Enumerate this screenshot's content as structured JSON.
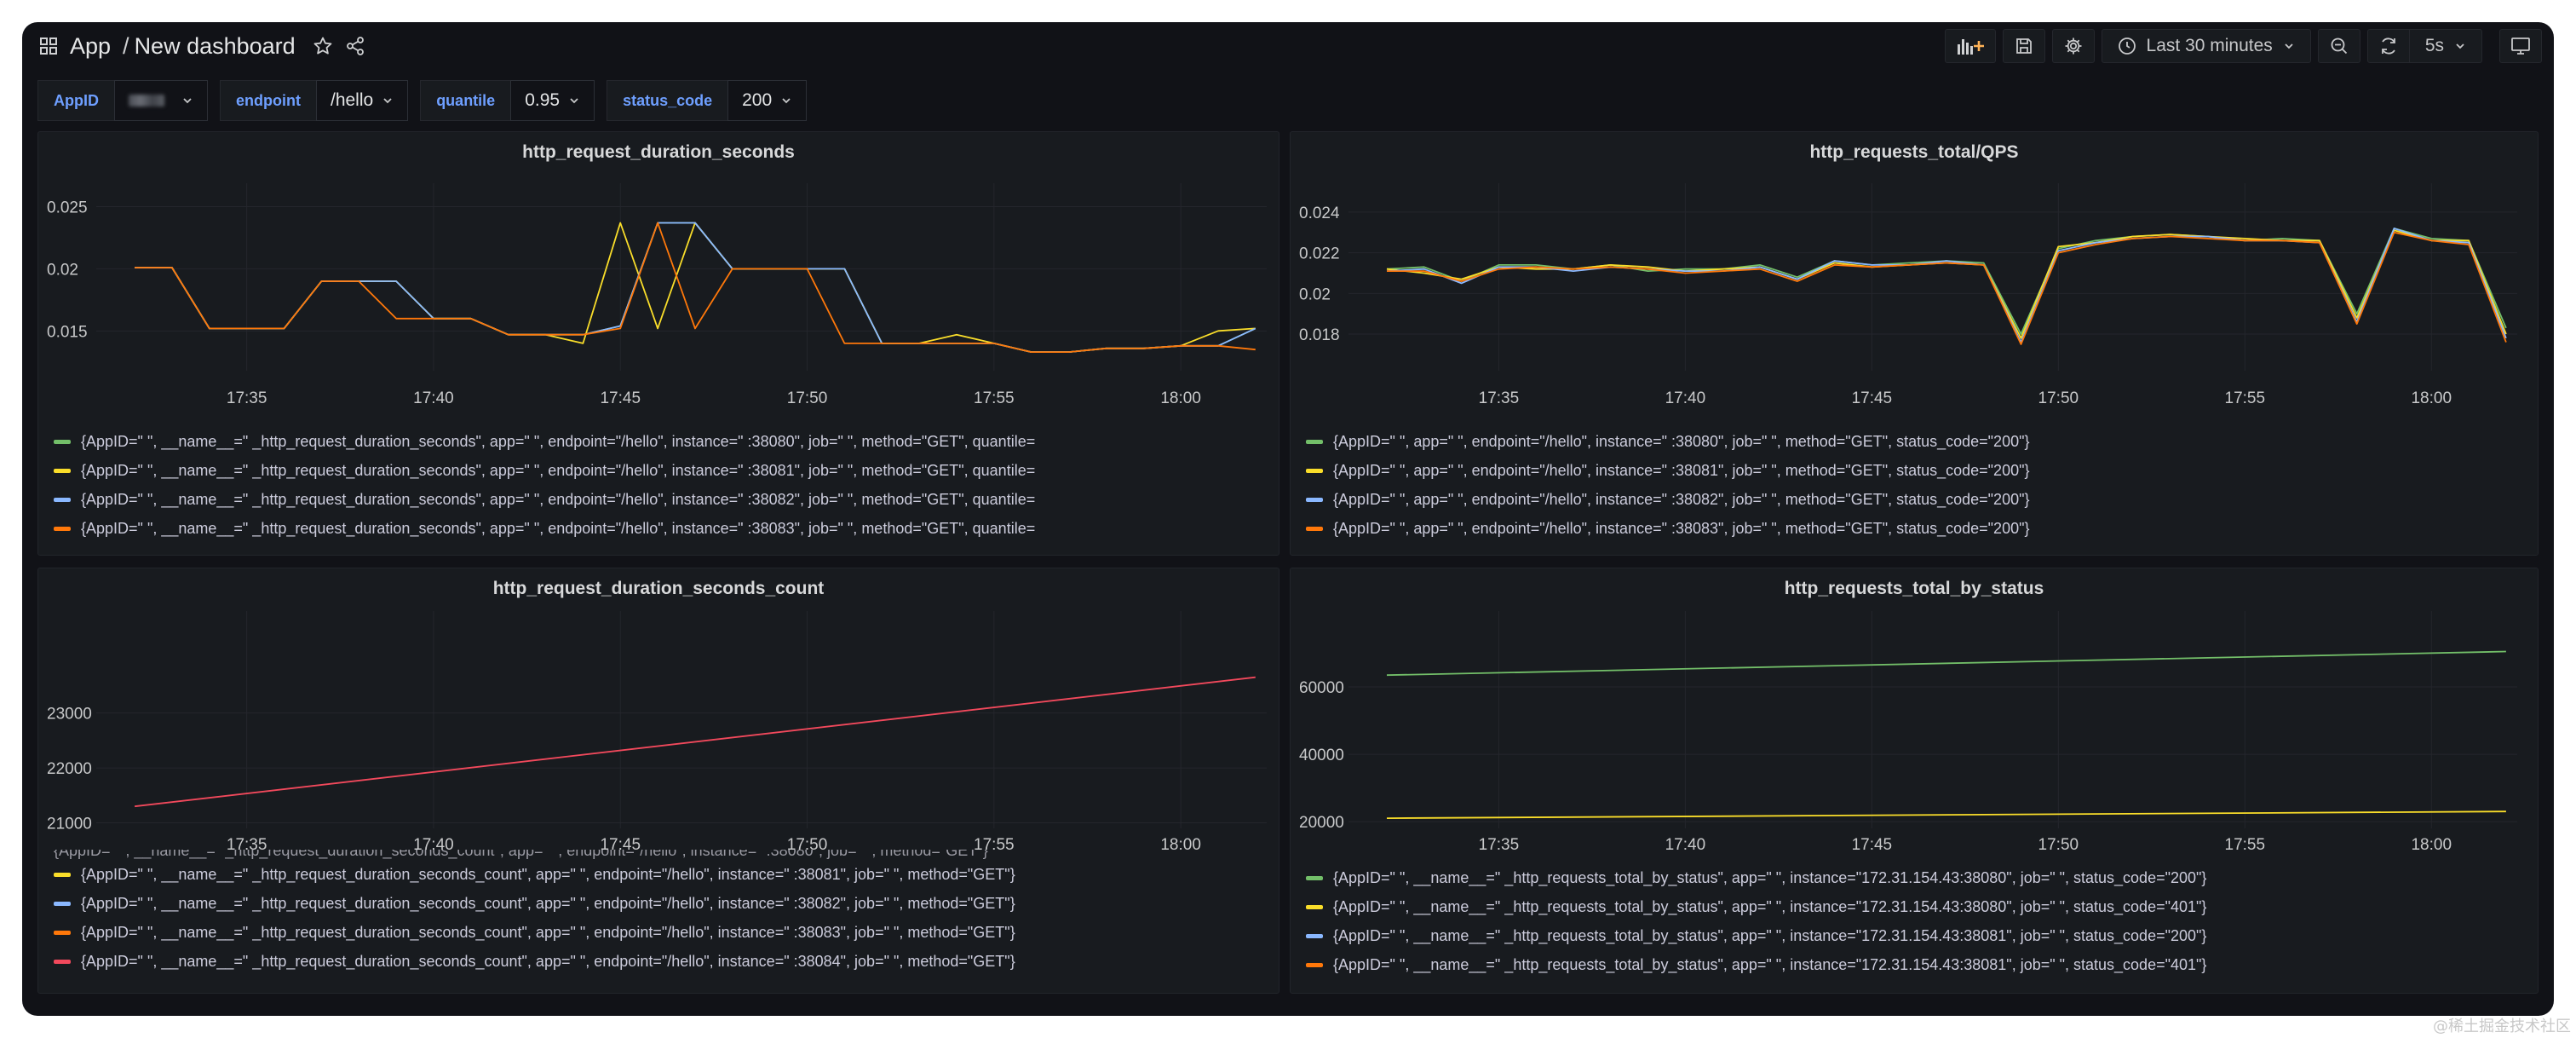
{
  "nav": {
    "app": "App",
    "separator": "/",
    "dashboard": "New dashboard",
    "time_range": "Last 30 minutes",
    "refresh_interval": "5s"
  },
  "variables": [
    {
      "label": "AppID",
      "value": ""
    },
    {
      "label": "endpoint",
      "value": "/hello"
    },
    {
      "label": "quantile",
      "value": "0.95"
    },
    {
      "label": "status_code",
      "value": "200"
    }
  ],
  "colors": {
    "green": "#73bf69",
    "yellow": "#fade2a",
    "blue": "#8ab8ff",
    "orange": "#ff780a",
    "red": "#f2495c",
    "bg": "#111217",
    "panel": "#181b1f"
  },
  "panels": [
    {
      "title": "http_request_duration_seconds",
      "legend": [
        {
          "color": "green",
          "text": "{AppID=\"       \", __name__=\"       _http_request_duration_seconds\", app=\"       \", endpoint=\"/hello\", instance=\"               :38080\", job=\"       \", method=\"GET\", quantile="
        },
        {
          "color": "yellow",
          "text": "{AppID=\"       \", __name__=\"       _http_request_duration_seconds\", app=\"       \", endpoint=\"/hello\", instance=\"               :38081\", job=\"       \", method=\"GET\", quantile="
        },
        {
          "color": "blue",
          "text": "{AppID=\"       \", __name__=\"       _http_request_duration_seconds\", app=\"       \", endpoint=\"/hello\", instance=\"               :38082\", job=\"       \", method=\"GET\", quantile="
        },
        {
          "color": "orange",
          "text": "{AppID=\"       \", __name__=\"       _http_request_duration_seconds\", app=\"       \", endpoint=\"/hello\", instance=\"               :38083\", job=\"       \", method=\"GET\", quantile="
        }
      ]
    },
    {
      "title": "http_requests_total/QPS",
      "legend": [
        {
          "color": "green",
          "text": "{AppID=\"       \", app=\"       \", endpoint=\"/hello\", instance=\"               :38080\", job=\"       \", method=\"GET\", status_code=\"200\"}"
        },
        {
          "color": "yellow",
          "text": "{AppID=\"       \", app=\"       \", endpoint=\"/hello\", instance=\"               :38081\", job=\"       \", method=\"GET\", status_code=\"200\"}"
        },
        {
          "color": "blue",
          "text": "{AppID=\"       \", app=\"       \", endpoint=\"/hello\", instance=\"               :38082\", job=\"       \", method=\"GET\", status_code=\"200\"}"
        },
        {
          "color": "orange",
          "text": "{AppID=\"       \", app=\"       \", endpoint=\"/hello\", instance=\"               :38083\", job=\"       \", method=\"GET\", status_code=\"200\"}"
        }
      ]
    },
    {
      "title": "http_request_duration_seconds_count",
      "legend_cutoff": "{AppID=\"       \", __name__=\"       _http_request_duration_seconds_count\", app=\"       \", endpoint=\"/hello\", instance=\"               :38080\", job=\"       \", method=\"GET\"}",
      "legend": [
        {
          "color": "yellow",
          "text": "{AppID=\"       \", __name__=\"       _http_request_duration_seconds_count\", app=\"       \", endpoint=\"/hello\", instance=\"               :38081\", job=\"       \", method=\"GET\"}"
        },
        {
          "color": "blue",
          "text": "{AppID=\"       \", __name__=\"       _http_request_duration_seconds_count\", app=\"       \", endpoint=\"/hello\", instance=\"               :38082\", job=\"       \", method=\"GET\"}"
        },
        {
          "color": "orange",
          "text": "{AppID=\"       \", __name__=\"       _http_request_duration_seconds_count\", app=\"       \", endpoint=\"/hello\", instance=\"               :38083\", job=\"       \", method=\"GET\"}"
        },
        {
          "color": "red",
          "text": "{AppID=\"       \", __name__=\"       _http_request_duration_seconds_count\", app=\"       \", endpoint=\"/hello\", instance=\"               :38084\", job=\"       \", method=\"GET\"}"
        }
      ]
    },
    {
      "title": "http_requests_total_by_status",
      "legend": [
        {
          "color": "green",
          "text": "{AppID=\"       \", __name__=\"       _http_requests_total_by_status\", app=\"       \", instance=\"172.31.154.43:38080\", job=\"       \", status_code=\"200\"}"
        },
        {
          "color": "yellow",
          "text": "{AppID=\"       \", __name__=\"       _http_requests_total_by_status\", app=\"       \", instance=\"172.31.154.43:38080\", job=\"       \", status_code=\"401\"}"
        },
        {
          "color": "blue",
          "text": "{AppID=\"       \", __name__=\"       _http_requests_total_by_status\", app=\"       \", instance=\"172.31.154.43:38081\", job=\"       \", status_code=\"200\"}"
        },
        {
          "color": "orange",
          "text": "{AppID=\"       \", __name__=\"       _http_requests_total_by_status\", app=\"       \", instance=\"172.31.154.43:38081\", job=\"       \", status_code=\"401\"}"
        }
      ]
    }
  ],
  "chart_data": [
    {
      "type": "line",
      "title": "http_request_duration_seconds",
      "x_ticks": [
        "17:35",
        "17:40",
        "17:45",
        "17:50",
        "17:55",
        "18:00"
      ],
      "x": [
        0,
        1,
        2,
        3,
        4,
        5,
        6,
        7,
        8,
        9,
        10,
        11,
        12,
        13,
        14,
        15,
        16,
        17,
        18,
        19,
        20,
        21,
        22,
        23,
        24,
        25,
        26,
        27,
        28,
        29,
        30
      ],
      "x_range": [
        -0.8,
        30.3
      ],
      "ylim": [
        0.0118,
        0.0262
      ],
      "y_ticks": [
        "0.015",
        "0.02",
        "0.025"
      ],
      "y_tick_values": [
        0.015,
        0.02,
        0.025
      ],
      "grid": true,
      "series": [
        {
          "color": "green",
          "values": [
            0.0201,
            0.0201,
            0.0152,
            0.0152,
            0.0152,
            0.019,
            0.019,
            0.019,
            0.016,
            0.016,
            0.0147,
            0.0147,
            0.0147,
            0.0154,
            0.0237,
            0.0237,
            0.02,
            0.02,
            0.02,
            0.02,
            0.014,
            0.014,
            0.014,
            0.014,
            0.0133,
            0.0133,
            0.0136,
            0.0136,
            0.0138,
            0.0138,
            0.0152
          ]
        },
        {
          "color": "yellow",
          "values": [
            0.0201,
            0.0201,
            0.0152,
            0.0152,
            0.0152,
            0.019,
            0.019,
            0.019,
            0.016,
            0.016,
            0.0147,
            0.0147,
            0.014,
            0.0237,
            0.0152,
            0.0237,
            0.02,
            0.02,
            0.02,
            0.02,
            0.014,
            0.014,
            0.0147,
            0.014,
            0.0133,
            0.0133,
            0.0136,
            0.0136,
            0.0138,
            0.015,
            0.0152
          ]
        },
        {
          "color": "blue",
          "values": [
            0.0201,
            0.0201,
            0.0152,
            0.0152,
            0.0152,
            0.019,
            0.019,
            0.019,
            0.016,
            0.016,
            0.0147,
            0.0147,
            0.0147,
            0.0154,
            0.0237,
            0.0237,
            0.02,
            0.02,
            0.02,
            0.02,
            0.014,
            0.014,
            0.014,
            0.014,
            0.0133,
            0.0133,
            0.0136,
            0.0136,
            0.0138,
            0.0138,
            0.0152
          ]
        },
        {
          "color": "orange",
          "values": [
            0.0201,
            0.0201,
            0.0152,
            0.0152,
            0.0152,
            0.019,
            0.019,
            0.016,
            0.016,
            0.016,
            0.0147,
            0.0147,
            0.0147,
            0.0152,
            0.0237,
            0.0152,
            0.02,
            0.02,
            0.02,
            0.014,
            0.014,
            0.014,
            0.014,
            0.014,
            0.0133,
            0.0133,
            0.0136,
            0.0136,
            0.0138,
            0.0138,
            0.0135
          ]
        }
      ]
    },
    {
      "type": "line",
      "title": "http_requests_total/QPS",
      "x_ticks": [
        "17:35",
        "17:40",
        "17:45",
        "17:50",
        "17:55",
        "18:00"
      ],
      "x": [
        0,
        1,
        2,
        3,
        4,
        5,
        6,
        7,
        8,
        9,
        10,
        11,
        12,
        13,
        14,
        15,
        16,
        17,
        18,
        19,
        20,
        21,
        22,
        23,
        24,
        25,
        26,
        27,
        28,
        29,
        30
      ],
      "x_range": [
        -0.8,
        30.3
      ],
      "ylim": [
        0.0162,
        0.025
      ],
      "y_ticks": [
        "0.018",
        "0.02",
        "0.022",
        "0.024"
      ],
      "y_tick_values": [
        0.018,
        0.02,
        0.022,
        0.024
      ],
      "grid": true,
      "series": [
        {
          "color": "green",
          "values": [
            0.0212,
            0.0213,
            0.0206,
            0.0214,
            0.0214,
            0.0212,
            0.0214,
            0.0211,
            0.0212,
            0.0212,
            0.0214,
            0.0208,
            0.0216,
            0.0214,
            0.0215,
            0.0216,
            0.0215,
            0.018,
            0.0222,
            0.0226,
            0.0228,
            0.0229,
            0.0228,
            0.0226,
            0.0227,
            0.0226,
            0.019,
            0.0232,
            0.0227,
            0.0226,
            0.0183
          ]
        },
        {
          "color": "yellow",
          "values": [
            0.0212,
            0.021,
            0.0207,
            0.0213,
            0.0212,
            0.0212,
            0.0214,
            0.0213,
            0.0211,
            0.0212,
            0.0213,
            0.0207,
            0.0215,
            0.0213,
            0.0214,
            0.0215,
            0.0214,
            0.0178,
            0.0223,
            0.0225,
            0.0228,
            0.0229,
            0.0228,
            0.0227,
            0.0226,
            0.0226,
            0.0188,
            0.0231,
            0.0226,
            0.0226,
            0.018
          ]
        },
        {
          "color": "blue",
          "values": [
            0.0211,
            0.0212,
            0.0205,
            0.0213,
            0.0213,
            0.0211,
            0.0213,
            0.0212,
            0.0211,
            0.0211,
            0.0213,
            0.0207,
            0.0216,
            0.0214,
            0.0214,
            0.0216,
            0.0214,
            0.0176,
            0.0221,
            0.0225,
            0.0227,
            0.0228,
            0.0228,
            0.0226,
            0.0226,
            0.0225,
            0.0186,
            0.0232,
            0.0226,
            0.0225,
            0.0178
          ]
        },
        {
          "color": "orange",
          "values": [
            0.0211,
            0.0211,
            0.0206,
            0.0212,
            0.0213,
            0.0212,
            0.0213,
            0.0212,
            0.021,
            0.0211,
            0.0212,
            0.0206,
            0.0214,
            0.0213,
            0.0214,
            0.0215,
            0.0214,
            0.0175,
            0.022,
            0.0224,
            0.0227,
            0.0228,
            0.0227,
            0.0226,
            0.0226,
            0.0225,
            0.0185,
            0.023,
            0.0226,
            0.0224,
            0.0176
          ]
        }
      ]
    },
    {
      "type": "line",
      "title": "http_request_duration_seconds_count",
      "x_ticks": [
        "17:35",
        "17:40",
        "17:45",
        "17:50",
        "17:55",
        "18:00"
      ],
      "x": [
        0,
        30
      ],
      "x_range": [
        -0.8,
        30.3
      ],
      "ylim": [
        20900,
        24700
      ],
      "y_ticks": [
        "21000",
        "22000",
        "23000"
      ],
      "y_tick_values": [
        21000,
        22000,
        23000
      ],
      "grid": true,
      "series": [
        {
          "color": "red",
          "values": [
            21300,
            23650
          ]
        }
      ]
    },
    {
      "type": "line",
      "title": "http_requests_total_by_status",
      "x_ticks": [
        "17:35",
        "17:40",
        "17:45",
        "17:50",
        "17:55",
        "18:00"
      ],
      "x": [
        0,
        30
      ],
      "x_range": [
        -0.8,
        30.3
      ],
      "ylim": [
        18000,
        80000
      ],
      "y_ticks": [
        "20000",
        "40000",
        "60000"
      ],
      "y_tick_values": [
        20000,
        40000,
        60000
      ],
      "grid": true,
      "series": [
        {
          "color": "green",
          "values": [
            63500,
            70500
          ]
        },
        {
          "color": "yellow",
          "values": [
            21000,
            23000
          ]
        }
      ]
    }
  ],
  "watermark": "@稀土掘金技术社区"
}
